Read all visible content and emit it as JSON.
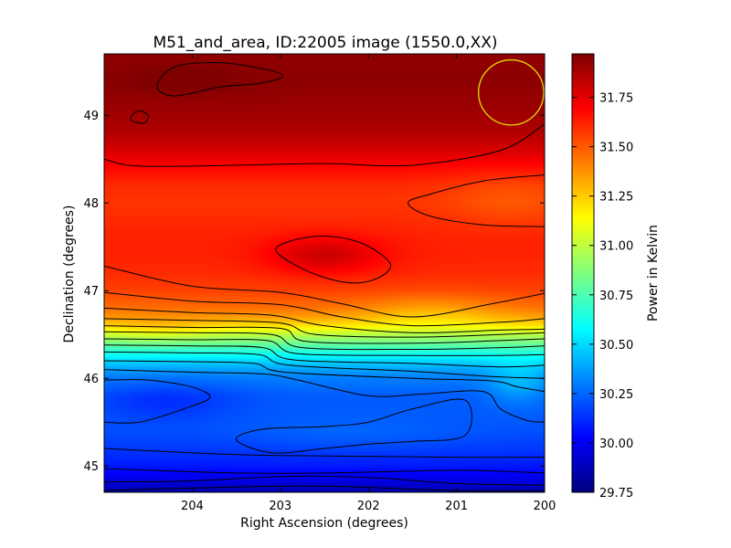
{
  "chart_data": {
    "type": "heatmap",
    "title": "M51_and_area, ID:22005 image (1550.0,XX)",
    "xlabel": "Right Ascension (degrees)",
    "ylabel": "Declination (degrees)",
    "colorbar_label": "Power in Kelvin",
    "colormap": "jet",
    "xlim": [
      205.0,
      200.0
    ],
    "ylim": [
      44.7,
      49.7
    ],
    "clim": [
      29.75,
      31.97
    ],
    "x_ticks": [
      204,
      203,
      202,
      201,
      200
    ],
    "y_ticks": [
      45,
      46,
      47,
      48,
      49
    ],
    "colorbar_ticks": [
      "29.75",
      "30.00",
      "30.25",
      "30.50",
      "30.75",
      "31.00",
      "31.25",
      "31.50",
      "31.75"
    ],
    "row_profile": {
      "dec": [
        44.7,
        44.85,
        45.0,
        45.2,
        45.4,
        45.6,
        45.8,
        46.0,
        46.1,
        46.2,
        46.3,
        46.4,
        46.5,
        46.6,
        46.7,
        46.8,
        47.0,
        47.2,
        47.4,
        47.6,
        47.8,
        48.0,
        48.2,
        48.4,
        48.6,
        48.8,
        49.0,
        49.2,
        49.4,
        49.7
      ],
      "power": [
        29.85,
        29.98,
        30.08,
        30.15,
        30.2,
        30.22,
        30.23,
        30.3,
        30.38,
        30.5,
        30.65,
        30.82,
        31.0,
        31.2,
        31.35,
        31.45,
        31.55,
        31.6,
        31.62,
        31.62,
        31.6,
        31.58,
        31.6,
        31.68,
        31.78,
        31.86,
        31.9,
        31.92,
        31.94,
        31.93
      ]
    },
    "blobs": [
      {
        "ra": 204.3,
        "dec": 45.75,
        "dra": 0.8,
        "ddec": 0.22,
        "amp": -0.1
      },
      {
        "ra": 202.2,
        "dec": 45.35,
        "dra": 1.3,
        "ddec": 0.2,
        "amp": 0.05
      },
      {
        "ra": 202.5,
        "dec": 47.4,
        "dra": 0.65,
        "ddec": 0.22,
        "amp": 0.18
      },
      {
        "ra": 200.4,
        "dec": 48.05,
        "dra": 0.7,
        "ddec": 0.3,
        "amp": -0.08
      },
      {
        "ra": 200.3,
        "dec": 45.95,
        "dra": 0.35,
        "ddec": 0.25,
        "amp": 0.15
      },
      {
        "ra": 204.1,
        "dec": 49.4,
        "dra": 0.7,
        "ddec": 0.18,
        "amp": 0.05
      },
      {
        "ra": 204.4,
        "dec": 46.55,
        "dra": 0.6,
        "ddec": 0.15,
        "amp": 0.08
      },
      {
        "ra": 201.3,
        "dec": 46.75,
        "dra": 0.8,
        "ddec": 0.2,
        "amp": -0.12
      }
    ],
    "contours": [
      {
        "label": "top-left-loop",
        "closed": true,
        "points": [
          [
            204.2,
            49.55
          ],
          [
            203.7,
            49.6
          ],
          [
            203.2,
            49.53
          ],
          [
            202.97,
            49.45
          ],
          [
            203.2,
            49.37
          ],
          [
            203.7,
            49.32
          ],
          [
            204.2,
            49.22
          ],
          [
            204.4,
            49.33
          ]
        ]
      },
      {
        "label": "small-ring",
        "closed": true,
        "points": [
          [
            204.62,
            49.05
          ],
          [
            204.5,
            49.0
          ],
          [
            204.55,
            48.91
          ],
          [
            204.7,
            48.95
          ]
        ]
      },
      {
        "label": "upper-band",
        "closed": false,
        "points": [
          [
            205.0,
            48.5
          ],
          [
            204.6,
            48.42
          ],
          [
            203.5,
            48.43
          ],
          [
            202.5,
            48.45
          ],
          [
            201.5,
            48.43
          ],
          [
            200.5,
            48.6
          ],
          [
            200.0,
            48.9
          ]
        ]
      },
      {
        "label": "right-wedge",
        "closed": false,
        "points": [
          [
            200.0,
            48.32
          ],
          [
            200.7,
            48.25
          ],
          [
            201.3,
            48.1
          ],
          [
            201.55,
            48.0
          ],
          [
            201.3,
            47.85
          ],
          [
            200.7,
            47.75
          ],
          [
            200.0,
            47.73
          ]
        ]
      },
      {
        "label": "central-loop",
        "closed": true,
        "points": [
          [
            203.05,
            47.48
          ],
          [
            202.6,
            47.62
          ],
          [
            202.1,
            47.55
          ],
          [
            201.75,
            47.3
          ],
          [
            201.95,
            47.12
          ],
          [
            202.3,
            47.1
          ],
          [
            202.75,
            47.25
          ]
        ]
      },
      {
        "label": "mid-1",
        "closed": false,
        "points": [
          [
            205.0,
            47.28
          ],
          [
            204.0,
            47.05
          ],
          [
            203.0,
            46.98
          ],
          [
            202.3,
            46.85
          ],
          [
            201.5,
            46.7
          ],
          [
            200.6,
            46.85
          ],
          [
            200.0,
            46.97
          ]
        ]
      },
      {
        "label": "mid-2",
        "closed": false,
        "points": [
          [
            205.0,
            46.98
          ],
          [
            204.0,
            46.88
          ],
          [
            203.0,
            46.84
          ],
          [
            202.3,
            46.7
          ],
          [
            201.5,
            46.6
          ],
          [
            200.5,
            46.64
          ],
          [
            200.0,
            46.68
          ]
        ]
      },
      {
        "label": "mid-3",
        "closed": false,
        "points": [
          [
            205.0,
            46.8
          ],
          [
            204.0,
            46.75
          ],
          [
            203.1,
            46.72
          ],
          [
            202.5,
            46.6
          ],
          [
            201.5,
            46.52
          ],
          [
            200.5,
            46.55
          ],
          [
            200.0,
            46.56
          ]
        ]
      },
      {
        "label": "mid-4",
        "closed": false,
        "points": [
          [
            205.0,
            46.68
          ],
          [
            204.0,
            46.66
          ],
          [
            203.0,
            46.63
          ],
          [
            202.6,
            46.5
          ],
          [
            201.5,
            46.47
          ],
          [
            200.5,
            46.5
          ],
          [
            200.0,
            46.52
          ]
        ]
      },
      {
        "label": "mid-5",
        "closed": false,
        "points": [
          [
            205.0,
            46.6
          ],
          [
            204.0,
            46.58
          ],
          [
            203.0,
            46.57
          ],
          [
            202.7,
            46.42
          ],
          [
            201.5,
            46.4
          ],
          [
            200.5,
            46.43
          ],
          [
            200.0,
            46.45
          ]
        ]
      },
      {
        "label": "mid-6",
        "closed": false,
        "points": [
          [
            205.0,
            46.53
          ],
          [
            204.0,
            46.52
          ],
          [
            203.1,
            46.5
          ],
          [
            202.75,
            46.35
          ],
          [
            201.5,
            46.33
          ],
          [
            200.5,
            46.35
          ],
          [
            200.0,
            46.37
          ]
        ]
      },
      {
        "label": "mid-7",
        "closed": false,
        "points": [
          [
            205.0,
            46.45
          ],
          [
            204.0,
            46.44
          ],
          [
            203.15,
            46.43
          ],
          [
            202.8,
            46.28
          ],
          [
            201.5,
            46.26
          ],
          [
            200.5,
            46.26
          ],
          [
            200.0,
            46.27
          ]
        ]
      },
      {
        "label": "mid-8",
        "closed": false,
        "points": [
          [
            205.0,
            46.38
          ],
          [
            204.0,
            46.37
          ],
          [
            203.2,
            46.35
          ],
          [
            202.85,
            46.21
          ],
          [
            201.5,
            46.17
          ],
          [
            200.5,
            46.13
          ],
          [
            200.0,
            46.15
          ]
        ]
      },
      {
        "label": "mid-9",
        "closed": false,
        "points": [
          [
            205.0,
            46.3
          ],
          [
            204.0,
            46.29
          ],
          [
            203.25,
            46.27
          ],
          [
            202.9,
            46.15
          ],
          [
            201.5,
            46.08
          ],
          [
            200.6,
            46.02
          ],
          [
            200.0,
            46.0
          ]
        ]
      },
      {
        "label": "mid-10",
        "closed": false,
        "points": [
          [
            205.0,
            46.2
          ],
          [
            204.0,
            46.19
          ],
          [
            203.3,
            46.17
          ],
          [
            202.95,
            46.07
          ],
          [
            201.5,
            46.0
          ],
          [
            200.6,
            45.97
          ],
          [
            200.3,
            45.9
          ],
          [
            200.0,
            45.85
          ]
        ]
      },
      {
        "label": "mid-11",
        "closed": false,
        "points": [
          [
            205.0,
            46.1
          ],
          [
            204.0,
            46.07
          ],
          [
            203.2,
            46.05
          ],
          [
            202.8,
            45.98
          ],
          [
            202.0,
            45.8
          ],
          [
            201.4,
            45.82
          ],
          [
            200.7,
            45.85
          ],
          [
            200.5,
            45.65
          ],
          [
            200.2,
            45.52
          ],
          [
            200.0,
            45.5
          ]
        ]
      },
      {
        "label": "left-blob",
        "closed": false,
        "points": [
          [
            205.0,
            45.98
          ],
          [
            204.5,
            45.98
          ],
          [
            204.0,
            45.9
          ],
          [
            203.8,
            45.78
          ],
          [
            204.1,
            45.65
          ],
          [
            204.6,
            45.5
          ],
          [
            205.0,
            45.5
          ]
        ]
      },
      {
        "label": "lower-mid-loop",
        "closed": true,
        "points": [
          [
            203.5,
            45.3
          ],
          [
            203.2,
            45.42
          ],
          [
            202.5,
            45.45
          ],
          [
            202.0,
            45.5
          ],
          [
            201.5,
            45.65
          ],
          [
            200.9,
            45.75
          ],
          [
            200.9,
            45.35
          ],
          [
            201.5,
            45.28
          ],
          [
            202.0,
            45.25
          ],
          [
            202.5,
            45.2
          ],
          [
            203.1,
            45.15
          ]
        ]
      },
      {
        "label": "low-1",
        "closed": false,
        "points": [
          [
            205.0,
            45.2
          ],
          [
            203.5,
            45.13
          ],
          [
            202.0,
            45.11
          ],
          [
            201.0,
            45.1
          ],
          [
            200.0,
            45.1
          ]
        ]
      },
      {
        "label": "low-2",
        "closed": false,
        "points": [
          [
            205.0,
            44.97
          ],
          [
            203.5,
            44.92
          ],
          [
            202.5,
            44.92
          ],
          [
            201.0,
            44.95
          ],
          [
            200.0,
            44.92
          ]
        ]
      },
      {
        "label": "low-3",
        "closed": false,
        "points": [
          [
            205.0,
            44.82
          ],
          [
            204.0,
            44.83
          ],
          [
            203.0,
            44.88
          ],
          [
            202.0,
            44.87
          ],
          [
            201.0,
            44.8
          ],
          [
            200.0,
            44.78
          ]
        ]
      },
      {
        "label": "low-4",
        "closed": false,
        "points": [
          [
            205.0,
            44.72
          ],
          [
            203.5,
            44.76
          ],
          [
            202.5,
            44.77
          ],
          [
            201.0,
            44.72
          ],
          [
            200.0,
            44.72
          ]
        ]
      }
    ],
    "beam": {
      "ra": 200.38,
      "dec": 49.26,
      "radius_deg": 0.37,
      "color": "#dddd00"
    }
  }
}
